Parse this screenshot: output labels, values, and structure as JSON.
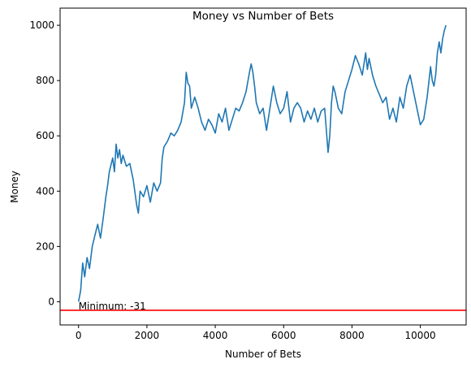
{
  "chart_data": {
    "type": "line",
    "title": "Money vs Number of Bets",
    "xlabel": "Number of Bets",
    "ylabel": "Money",
    "xlim": [
      -540,
      11340
    ],
    "ylim": [
      -84,
      1062
    ],
    "xticks": [
      0,
      2000,
      4000,
      6000,
      8000,
      10000
    ],
    "yticks": [
      0,
      200,
      400,
      600,
      800,
      1000
    ],
    "grid": false,
    "colors": {
      "line": "#1f77b4",
      "minimum_line": "#ff0000"
    },
    "series": [
      {
        "x": [
          0,
          60,
          120,
          180,
          250,
          320,
          400,
          480,
          560,
          640,
          720,
          800,
          850,
          900,
          960,
          1000,
          1050,
          1100,
          1150,
          1200,
          1250,
          1300,
          1400,
          1500,
          1600,
          1700,
          1750,
          1800,
          1900,
          2000,
          2100,
          2200,
          2300,
          2400,
          2450,
          2500,
          2600,
          2700,
          2800,
          2900,
          3000,
          3100,
          3150,
          3200,
          3250,
          3300,
          3400,
          3500,
          3600,
          3700,
          3800,
          3900,
          4000,
          4100,
          4200,
          4300,
          4400,
          4500,
          4600,
          4700,
          4800,
          4900,
          5000,
          5050,
          5100,
          5150,
          5200,
          5300,
          5400,
          5500,
          5600,
          5700,
          5800,
          5900,
          6000,
          6100,
          6200,
          6300,
          6400,
          6500,
          6600,
          6700,
          6800,
          6900,
          7000,
          7100,
          7200,
          7300,
          7350,
          7400,
          7450,
          7500,
          7600,
          7700,
          7800,
          7900,
          8000,
          8100,
          8200,
          8300,
          8400,
          8450,
          8500,
          8600,
          8700,
          8800,
          8900,
          9000,
          9100,
          9200,
          9300,
          9400,
          9500,
          9600,
          9700,
          9800,
          9900,
          10000,
          10100,
          10200,
          10300,
          10350,
          10400,
          10450,
          10500,
          10550,
          10600,
          10650,
          10700,
          10750
        ],
        "y": [
          0,
          40,
          140,
          90,
          160,
          120,
          200,
          240,
          280,
          230,
          300,
          380,
          420,
          470,
          500,
          520,
          470,
          570,
          520,
          550,
          500,
          530,
          490,
          500,
          440,
          350,
          320,
          400,
          380,
          420,
          360,
          430,
          400,
          430,
          520,
          560,
          580,
          610,
          600,
          620,
          650,
          720,
          830,
          790,
          780,
          700,
          740,
          700,
          650,
          620,
          660,
          640,
          610,
          680,
          650,
          700,
          620,
          660,
          700,
          690,
          720,
          760,
          830,
          860,
          830,
          780,
          720,
          680,
          700,
          620,
          700,
          780,
          720,
          680,
          700,
          760,
          650,
          700,
          720,
          700,
          650,
          690,
          660,
          700,
          650,
          690,
          700,
          540,
          600,
          720,
          780,
          760,
          700,
          680,
          760,
          800,
          840,
          890,
          860,
          820,
          900,
          840,
          880,
          820,
          780,
          750,
          720,
          740,
          660,
          700,
          650,
          740,
          700,
          780,
          820,
          760,
          700,
          640,
          660,
          740,
          850,
          800,
          780,
          820,
          900,
          940,
          900,
          950,
          980,
          1000
        ]
      }
    ],
    "minimum": {
      "value": -31,
      "label": "Minimum: -31"
    }
  }
}
